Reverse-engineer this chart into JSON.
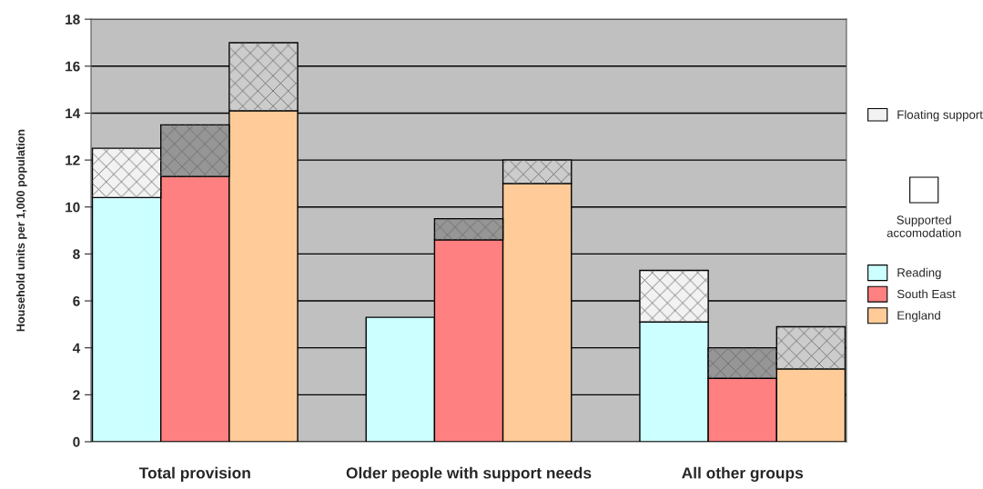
{
  "chart_data": {
    "type": "bar",
    "stacked": true,
    "categories": [
      null,
      "Total provision",
      null,
      null,
      null,
      "Older people with support needs",
      null,
      null,
      null,
      "All other groups",
      null
    ],
    "ylabel": "Household units per 1,000 population",
    "ylim": [
      0,
      18
    ],
    "yticks": [
      0,
      2,
      4,
      6,
      8,
      10,
      12,
      14,
      16,
      18
    ],
    "grid": "y",
    "legend": "right",
    "annotations": [
      "Supported accomodation"
    ],
    "series": [
      {
        "name": "Reading",
        "color": "#ccffff",
        "values": [
          10.4,
          null,
          null,
          null,
          5.3,
          null,
          null,
          null,
          5.1,
          null,
          null
        ]
      },
      {
        "name": "South East",
        "color": "#ff8080",
        "values": [
          null,
          11.3,
          null,
          null,
          null,
          8.6,
          null,
          null,
          null,
          2.7,
          null
        ]
      },
      {
        "name": "England",
        "color": "#ffcc99",
        "values": [
          null,
          null,
          14.1,
          null,
          null,
          null,
          11.0,
          null,
          null,
          null,
          3.1
        ]
      },
      {
        "name": "Floating support",
        "color": "#f2f2f2",
        "colors": [
          "#f2f2f2",
          "#969696",
          "#cccccc",
          null,
          null,
          "#969696",
          "#cccccc",
          null,
          "#f2f2f2",
          "#969696",
          "#cccccc"
        ],
        "values": [
          2.1,
          2.2,
          2.9,
          null,
          null,
          0.9,
          1.0,
          null,
          2.2,
          1.3,
          1.8
        ]
      }
    ]
  }
}
